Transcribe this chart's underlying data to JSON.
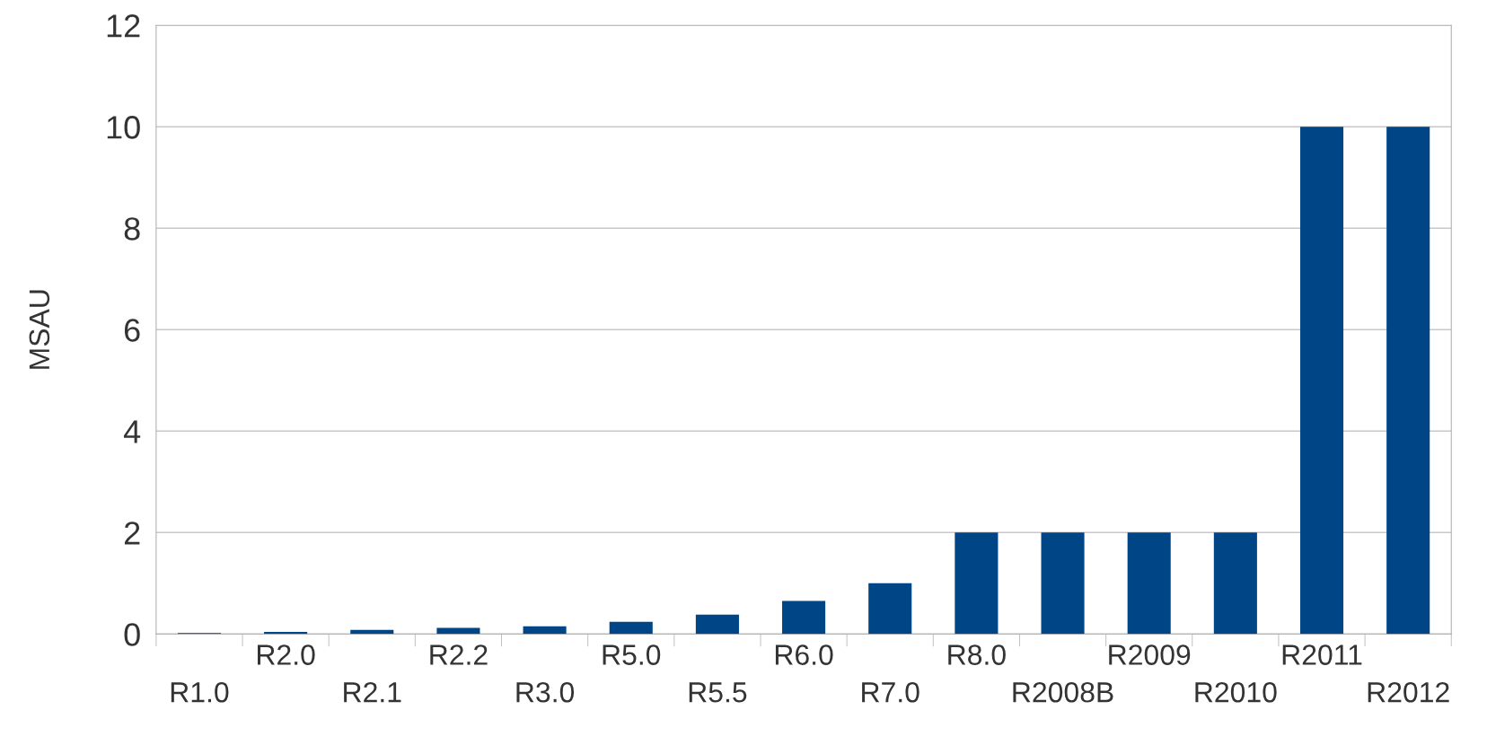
{
  "chart_data": {
    "type": "bar",
    "ylabel": "MSAU",
    "categories": [
      "R1.0",
      "R2.0",
      "R2.1",
      "R2.2",
      "R3.0",
      "R5.0",
      "R5.5",
      "R6.0",
      "R7.0",
      "R8.0",
      "R2008B",
      "R2009",
      "R2010",
      "R2011",
      "R2012"
    ],
    "values": [
      0.02,
      0.04,
      0.08,
      0.12,
      0.15,
      0.24,
      0.38,
      0.65,
      1,
      2,
      2,
      2,
      2,
      10,
      10
    ],
    "color": "#004586",
    "ylim": [
      0,
      12
    ],
    "yticks": [
      0,
      2,
      4,
      6,
      8,
      10,
      12
    ],
    "grid": "y",
    "legend": false
  }
}
